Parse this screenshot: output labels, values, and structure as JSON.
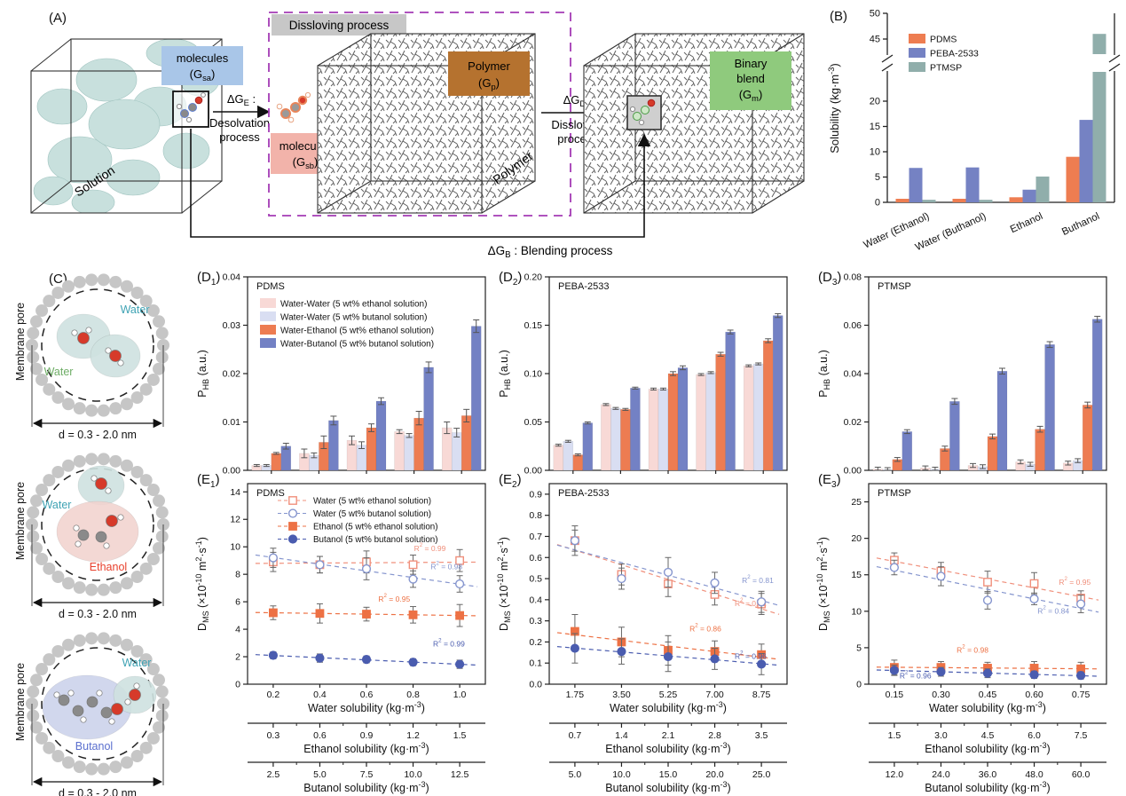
{
  "panels": {
    "A": {
      "label": "(A)",
      "solution_cube_label": "Solution",
      "polymer_cube_label": "Polymer",
      "dissolving_box_title": "Dissloving process",
      "chips": {
        "molecules_sa": {
          "line1": "molecules",
          "line2": "(G_{sa})",
          "color": "#a9c6e8"
        },
        "molecules_sb": {
          "line1": "molecules",
          "line2": "(G_{sb})",
          "color": "#f2b3aa"
        },
        "polymer": {
          "line1": "Polymer",
          "line2": "(G_{p})",
          "color": "#b5722f"
        },
        "binary_blend": {
          "line1": "Binary",
          "line2": "blend",
          "line3": "(G_{m})",
          "color": "#8fca7d"
        }
      },
      "arrows": {
        "desolvation": {
          "dg": "ΔG_{E} :",
          "line1": "Desolvation",
          "line2": "process"
        },
        "dissolving": {
          "dg": "ΔG_{D} :",
          "line1": "Dissloving",
          "line2": "process"
        },
        "blending": "ΔG_{B} : Blending process"
      },
      "plus_sign": "+"
    },
    "B": {
      "label": "(B)"
    },
    "C": {
      "label": "(C)",
      "pores": [
        {
          "side_label": "Membrane pore",
          "diameter_label": "d = 0.3 - 2.0 nm",
          "molecule_labels": [
            {
              "text": "Water",
              "color": "#3fa3b4"
            },
            {
              "text": "Water",
              "color": "#6fae67"
            }
          ]
        },
        {
          "side_label": "Membrane pore",
          "diameter_label": "d = 0.3 - 2.0 nm",
          "molecule_labels": [
            {
              "text": "Water",
              "color": "#3fa3b4"
            },
            {
              "text": "Ethanol",
              "color": "#e8402c"
            }
          ]
        },
        {
          "side_label": "Membrane pore",
          "diameter_label": "d = 0.3 - 2.0 nm",
          "molecule_labels": [
            {
              "text": "Water",
              "color": "#3fa3b4"
            },
            {
              "text": "Butanol",
              "color": "#5a6fce"
            }
          ]
        }
      ]
    },
    "D1": {
      "label": "(D_{1})"
    },
    "D2": {
      "label": "(D_{2})"
    },
    "D3": {
      "label": "(D_{3})"
    },
    "E1": {
      "label": "(E_{1})"
    },
    "E2": {
      "label": "(E_{2})"
    },
    "E3": {
      "label": "(E_{3})"
    }
  },
  "chart_data": [
    {
      "id": "B",
      "type": "bar-broken",
      "title": "",
      "ylabel": "Solubility (kg·m^{-3})",
      "categories": [
        "Water (Ethanol)",
        "Water (Buthanol)",
        "Ethanol",
        "Buthanol"
      ],
      "series": [
        {
          "name": "PDMS",
          "color": "#ee7d51",
          "values": [
            0.7,
            0.7,
            1.0,
            9.0
          ]
        },
        {
          "name": "PEBA-2533",
          "color": "#7582c3",
          "values": [
            6.8,
            6.9,
            2.5,
            16.3
          ]
        },
        {
          "name": "PTMSP",
          "color": "#90aeab",
          "values": [
            0.5,
            0.5,
            5.1,
            46.0
          ]
        }
      ],
      "axis_break": {
        "lower_ticks": [
          "0",
          "5",
          "10",
          "15",
          "20"
        ],
        "lower_tick_values": [
          0,
          5,
          10,
          15,
          20
        ],
        "upper_ticks": [
          "45",
          "50"
        ],
        "upper_tick_values": [
          45,
          50
        ]
      },
      "legend_position": "top-left",
      "grid": false
    },
    {
      "id": "D1",
      "type": "bar-group",
      "title": "PDMS",
      "ylabel": "P_{HB} (a.u.)",
      "ylim": [
        0,
        0.04
      ],
      "ytick_labels": [
        "0.00",
        "0.01",
        "0.02",
        "0.03",
        "0.04"
      ],
      "ytick_values": [
        0,
        0.01,
        0.02,
        0.03,
        0.04
      ],
      "show_legend": true,
      "series": [
        {
          "name": "Water-Water (5 wt% ethanol solution)",
          "color": "#f8d9d6",
          "values": [
            0.001,
            0.0035,
            0.0062,
            0.008,
            0.0088
          ],
          "err": [
            0.0002,
            0.0009,
            0.0009,
            0.0004,
            0.0012
          ]
        },
        {
          "name": "Water-Water (5 wt% butanol solution)",
          "color": "#d9def2",
          "values": [
            0.001,
            0.0031,
            0.0052,
            0.0072,
            0.0078
          ],
          "err": [
            0.0002,
            0.0005,
            0.0007,
            0.0004,
            0.0009
          ]
        },
        {
          "name": "Water-Ethanol (5 wt% ethanol solution)",
          "color": "#ed7c52",
          "values": [
            0.0035,
            0.0058,
            0.0088,
            0.0108,
            0.0113
          ],
          "err": [
            0.0002,
            0.0013,
            0.0008,
            0.0014,
            0.0013
          ]
        },
        {
          "name": "Water-Butanol (5 wt% butanol solution)",
          "color": "#7381c4",
          "values": [
            0.005,
            0.0103,
            0.0143,
            0.0213,
            0.0298
          ],
          "err": [
            0.0006,
            0.0009,
            0.0007,
            0.0011,
            0.0013
          ]
        }
      ]
    },
    {
      "id": "D2",
      "type": "bar-group",
      "title": "PEBA-2533",
      "ylabel": "P_{HB} (a.u.)",
      "ylim": [
        0,
        0.2
      ],
      "ytick_labels": [
        "0.00",
        "0.05",
        "0.10",
        "0.15",
        "0.20"
      ],
      "ytick_values": [
        0,
        0.05,
        0.1,
        0.15,
        0.2
      ],
      "show_legend": false,
      "series": [
        {
          "name": "Water-Water (5 wt% ethanol solution)",
          "color": "#f8d9d6",
          "values": [
            0.026,
            0.068,
            0.084,
            0.099,
            0.108
          ],
          "err": [
            0.001,
            0.001,
            0.001,
            0.001,
            0.001
          ]
        },
        {
          "name": "Water-Water (5 wt% butanol solution)",
          "color": "#d9def2",
          "values": [
            0.03,
            0.064,
            0.084,
            0.101,
            0.11
          ],
          "err": [
            0.001,
            0.001,
            0.001,
            0.001,
            0.001
          ]
        },
        {
          "name": "Water-Ethanol (5 wt% ethanol solution)",
          "color": "#ed7c52",
          "values": [
            0.016,
            0.063,
            0.1,
            0.12,
            0.134
          ],
          "err": [
            0.001,
            0.001,
            0.002,
            0.002,
            0.002
          ]
        },
        {
          "name": "Water-Butanol (5 wt% butanol solution)",
          "color": "#7381c4",
          "values": [
            0.049,
            0.085,
            0.106,
            0.143,
            0.16
          ],
          "err": [
            0.001,
            0.001,
            0.002,
            0.002,
            0.002
          ]
        }
      ]
    },
    {
      "id": "D3",
      "type": "bar-group",
      "title": "PTMSP",
      "ylabel": "P_{HB} (a.u.)",
      "ylim": [
        0,
        0.08
      ],
      "ytick_labels": [
        "0.00",
        "0.02",
        "0.04",
        "0.06",
        "0.08"
      ],
      "ytick_values": [
        0,
        0.02,
        0.04,
        0.06,
        0.08
      ],
      "show_legend": false,
      "series": [
        {
          "name": "Water-Water (5 wt% ethanol solution)",
          "color": "#f8d9d6",
          "values": [
            0.0005,
            0.001,
            0.002,
            0.0035,
            0.003
          ],
          "err": [
            0.0008,
            0.0008,
            0.0008,
            0.0008,
            0.0008
          ]
        },
        {
          "name": "Water-Water (5 wt% butanol solution)",
          "color": "#d9def2",
          "values": [
            0.0003,
            0.0005,
            0.0015,
            0.0025,
            0.004
          ],
          "err": [
            0.0008,
            0.0008,
            0.0008,
            0.0008,
            0.0008
          ]
        },
        {
          "name": "Water-Ethanol (5 wt% ethanol solution)",
          "color": "#ed7c52",
          "values": [
            0.0045,
            0.009,
            0.014,
            0.017,
            0.027
          ],
          "err": [
            0.0008,
            0.001,
            0.001,
            0.0012,
            0.0012
          ]
        },
        {
          "name": "Water-Butanol (5 wt% butanol solution)",
          "color": "#7381c4",
          "values": [
            0.016,
            0.0285,
            0.041,
            0.052,
            0.0625
          ],
          "err": [
            0.0008,
            0.0012,
            0.0012,
            0.0012,
            0.0012
          ]
        }
      ]
    },
    {
      "id": "E1",
      "type": "scatter",
      "title": "PDMS",
      "ylabel": "D_{MS} (×10^{-10} m^{2}·s^{-1})",
      "xlabel": "Water solubility (kg·m^{-3})",
      "x": [
        0.2,
        0.4,
        0.6,
        0.8,
        1.0
      ],
      "xtick_labels": [
        "0.2",
        "0.4",
        "0.6",
        "0.8",
        "1.0"
      ],
      "ylim": [
        0,
        14.6
      ],
      "ytick_labels": [
        "0",
        "2",
        "4",
        "6",
        "8",
        "10",
        "12",
        "14"
      ],
      "ytick_values": [
        0,
        2,
        4,
        6,
        8,
        10,
        12,
        14
      ],
      "show_legend": true,
      "series": [
        {
          "name": "Water (5 wt% ethanol solution)",
          "marker": "square",
          "fill": "open",
          "color": "#f0907c",
          "values": [
            8.9,
            8.7,
            8.9,
            8.7,
            9.0
          ],
          "err": [
            0.7,
            0.6,
            0.8,
            0.7,
            0.8
          ],
          "r2": "R^{2} = 0.99",
          "r2_at": {
            "fx": 0.7,
            "y": 9.7
          }
        },
        {
          "name": "Water (5 wt% butanol solution)",
          "marker": "circle",
          "fill": "open",
          "color": "#8595ce",
          "values": [
            9.2,
            8.7,
            8.4,
            7.65,
            7.3
          ],
          "err": [
            0.7,
            0.6,
            0.8,
            0.6,
            0.6
          ],
          "r2": "R^{2} = 0.98",
          "r2_at": {
            "fx": 0.77,
            "y": 8.35
          }
        },
        {
          "name": "Ethanol (5 wt% ethanol solution)",
          "marker": "square",
          "fill": "solid",
          "color": "#ed7144",
          "values": [
            5.2,
            5.15,
            5.1,
            5.05,
            5.0
          ],
          "err": [
            0.5,
            0.7,
            0.5,
            0.6,
            0.8
          ],
          "r2": "R^{2} = 0.95",
          "r2_at": {
            "fx": 0.55,
            "y": 6.0
          }
        },
        {
          "name": "Butanol (5 wt% butanol solution)",
          "marker": "circle",
          "fill": "solid",
          "color": "#4a5caf",
          "values": [
            2.1,
            1.9,
            1.8,
            1.6,
            1.45
          ],
          "err": [
            0.25,
            0.3,
            0.25,
            0.25,
            0.3
          ],
          "r2": "R^{2} = 0.99",
          "r2_at": {
            "fx": 0.78,
            "y": 2.75
          }
        }
      ],
      "extra_axes": [
        {
          "label": "Ethanol solubility (kg·m^{-3})",
          "ticks": [
            "0.3",
            "0.6",
            "0.9",
            "1.2",
            "1.5"
          ]
        },
        {
          "label": "Butanol solubility (kg·m^{-3})",
          "ticks": [
            "2.5",
            "5.0",
            "7.5",
            "10.0",
            "12.5"
          ]
        }
      ]
    },
    {
      "id": "E2",
      "type": "scatter",
      "title": "PEBA-2533",
      "ylabel": "D_{MS} (×10^{-10} m^{2}·s^{-1})",
      "xlabel": "Water solubility (kg·m^{-3})",
      "x": [
        1.75,
        3.5,
        5.25,
        7.0,
        8.75
      ],
      "xtick_labels": [
        "1.75",
        "3.50",
        "5.25",
        "7.00",
        "8.75"
      ],
      "ylim": [
        0,
        0.95
      ],
      "ytick_labels": [
        "0.0",
        "0.1",
        "0.2",
        "0.3",
        "0.4",
        "0.5",
        "0.6",
        "0.7",
        "0.8",
        "0.9"
      ],
      "ytick_values": [
        0,
        0.1,
        0.2,
        0.3,
        0.4,
        0.5,
        0.6,
        0.7,
        0.8,
        0.9
      ],
      "show_legend": false,
      "series": [
        {
          "name": "Water (5 wt% ethanol solution)",
          "marker": "square",
          "fill": "open",
          "color": "#f0907c",
          "values": [
            0.68,
            0.52,
            0.475,
            0.425,
            0.38
          ],
          "err": [
            0.05,
            0.05,
            0.06,
            0.05,
            0.05
          ],
          "r2": "R^{2} = 0.91",
          "r2_at": {
            "fx": 0.78,
            "y": 0.37
          }
        },
        {
          "name": "Water (5 wt% butanol solution)",
          "marker": "circle",
          "fill": "open",
          "color": "#8595ce",
          "values": [
            0.68,
            0.5,
            0.53,
            0.48,
            0.39
          ],
          "err": [
            0.07,
            0.05,
            0.07,
            0.05,
            0.05
          ],
          "r2": "R^{2} = 0.81",
          "r2_at": {
            "fx": 0.81,
            "y": 0.48
          }
        },
        {
          "name": "Ethanol (5 wt% ethanol solution)",
          "marker": "square",
          "fill": "solid",
          "color": "#ed7144",
          "values": [
            0.25,
            0.2,
            0.16,
            0.155,
            0.14
          ],
          "err": [
            0.08,
            0.07,
            0.07,
            0.05,
            0.05
          ],
          "r2": "R^{2} = 0.86",
          "r2_at": {
            "fx": 0.59,
            "y": 0.25
          }
        },
        {
          "name": "Butanol (5 wt% butanol solution)",
          "marker": "circle",
          "fill": "solid",
          "color": "#4a5caf",
          "values": [
            0.17,
            0.155,
            0.13,
            0.12,
            0.095
          ],
          "err": [
            0.07,
            0.06,
            0.07,
            0.05,
            0.05
          ],
          "r2": "R^{2} = 0.96",
          "r2_at": {
            "fx": 0.78,
            "y": 0.12
          }
        }
      ],
      "extra_axes": [
        {
          "label": "Ethanol solubility (kg·m^{-3})",
          "ticks": [
            "0.7",
            "1.4",
            "2.1",
            "2.8",
            "3.5"
          ]
        },
        {
          "label": "Butanol solubility (kg·m^{-3})",
          "ticks": [
            "5.0",
            "10.0",
            "15.0",
            "20.0",
            "25.0"
          ]
        }
      ]
    },
    {
      "id": "E3",
      "type": "scatter",
      "title": "PTMSP",
      "ylabel": "D_{MS} (×10^{-10} m^{2}·s^{-1})",
      "xlabel": "Water solubility (kg·m^{-3})",
      "x": [
        0.15,
        0.3,
        0.45,
        0.6,
        0.75
      ],
      "xtick_labels": [
        "0.15",
        "0.30",
        "0.45",
        "0.60",
        "0.75"
      ],
      "ylim": [
        0,
        27.5
      ],
      "ytick_labels": [
        "0",
        "5",
        "10",
        "15",
        "20",
        "25"
      ],
      "ytick_values": [
        0,
        5,
        10,
        15,
        20,
        25
      ],
      "show_legend": false,
      "series": [
        {
          "name": "Water (5 wt% ethanol solution)",
          "marker": "square",
          "fill": "open",
          "color": "#f0907c",
          "values": [
            17.0,
            15.5,
            14.0,
            13.8,
            11.8
          ],
          "err": [
            1.0,
            1.2,
            1.5,
            1.5,
            1.0
          ],
          "r2": "R^{2} = 0.95",
          "r2_at": {
            "fx": 0.8,
            "y": 13.6
          }
        },
        {
          "name": "Water (5 wt% butanol solution)",
          "marker": "circle",
          "fill": "open",
          "color": "#8595ce",
          "values": [
            16.0,
            14.8,
            11.5,
            11.7,
            11.0
          ],
          "err": [
            1.0,
            1.3,
            1.2,
            0.8,
            1.2
          ],
          "r2": "R^{2} = 0.84",
          "r2_at": {
            "fx": 0.71,
            "y": 9.7
          }
        },
        {
          "name": "Ethanol (5 wt% ethanol solution)",
          "marker": "square",
          "fill": "solid",
          "color": "#ed7144",
          "values": [
            2.3,
            2.3,
            2.2,
            2.2,
            2.1
          ],
          "err": [
            1.0,
            0.8,
            0.8,
            0.9,
            0.9
          ],
          "r2": "R^{2} = 0.98",
          "r2_at": {
            "fx": 0.37,
            "y": 4.3
          }
        },
        {
          "name": "Butanol (5 wt% butanol solution)",
          "marker": "circle",
          "fill": "solid",
          "color": "#4a5caf",
          "values": [
            1.9,
            1.7,
            1.5,
            1.3,
            1.2
          ],
          "err": [
            0.7,
            0.6,
            0.6,
            0.5,
            0.5
          ],
          "r2": "R^{2} = 0.96",
          "r2_at": {
            "fx": 0.13,
            "y": 0.8
          }
        }
      ],
      "extra_axes": [
        {
          "label": "Ethanol solubility (kg·m^{-3})",
          "ticks": [
            "1.5",
            "3.0",
            "4.5",
            "6.0",
            "7.5"
          ]
        },
        {
          "label": "Butanol solubility (kg·m^{-3})",
          "ticks": [
            "12.0",
            "24.0",
            "36.0",
            "48.0",
            "60.0"
          ]
        }
      ]
    }
  ]
}
